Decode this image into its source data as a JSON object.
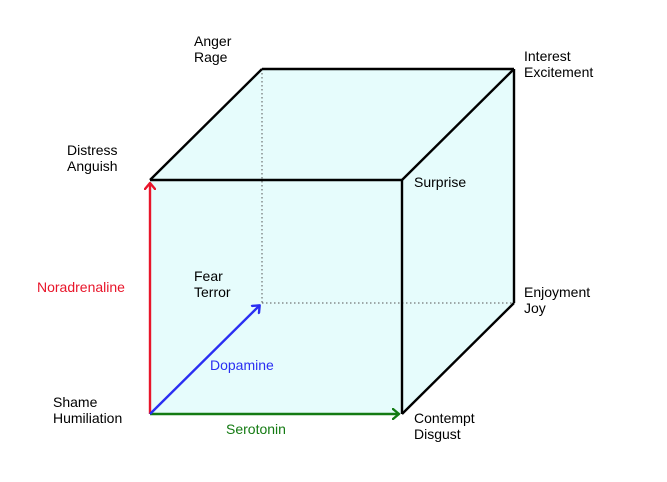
{
  "vertices": {
    "anger_rage": [
      "Anger",
      "Rage"
    ],
    "interest_excitement": [
      "Interest",
      "Excitement"
    ],
    "distress_anguish": [
      "Distress",
      "Anguish"
    ],
    "surprise": [
      "Surprise"
    ],
    "fear_terror": [
      "Fear",
      "Terror"
    ],
    "enjoyment_joy": [
      "Enjoyment",
      "Joy"
    ],
    "shame_humiliation": [
      "Shame",
      "Humiliation"
    ],
    "contempt_disgust": [
      "Contempt",
      "Disgust"
    ]
  },
  "axes": {
    "noradrenaline": {
      "label": "Noradrenaline",
      "color": "#e8152a"
    },
    "dopamine": {
      "label": "Dopamine",
      "color": "#2a2ef2"
    },
    "serotonin": {
      "label": "Serotonin",
      "color": "#137a12"
    }
  },
  "colors": {
    "cube_fill": "#e6fcfc",
    "edge": "#000000",
    "hidden_edge": "#555555"
  }
}
